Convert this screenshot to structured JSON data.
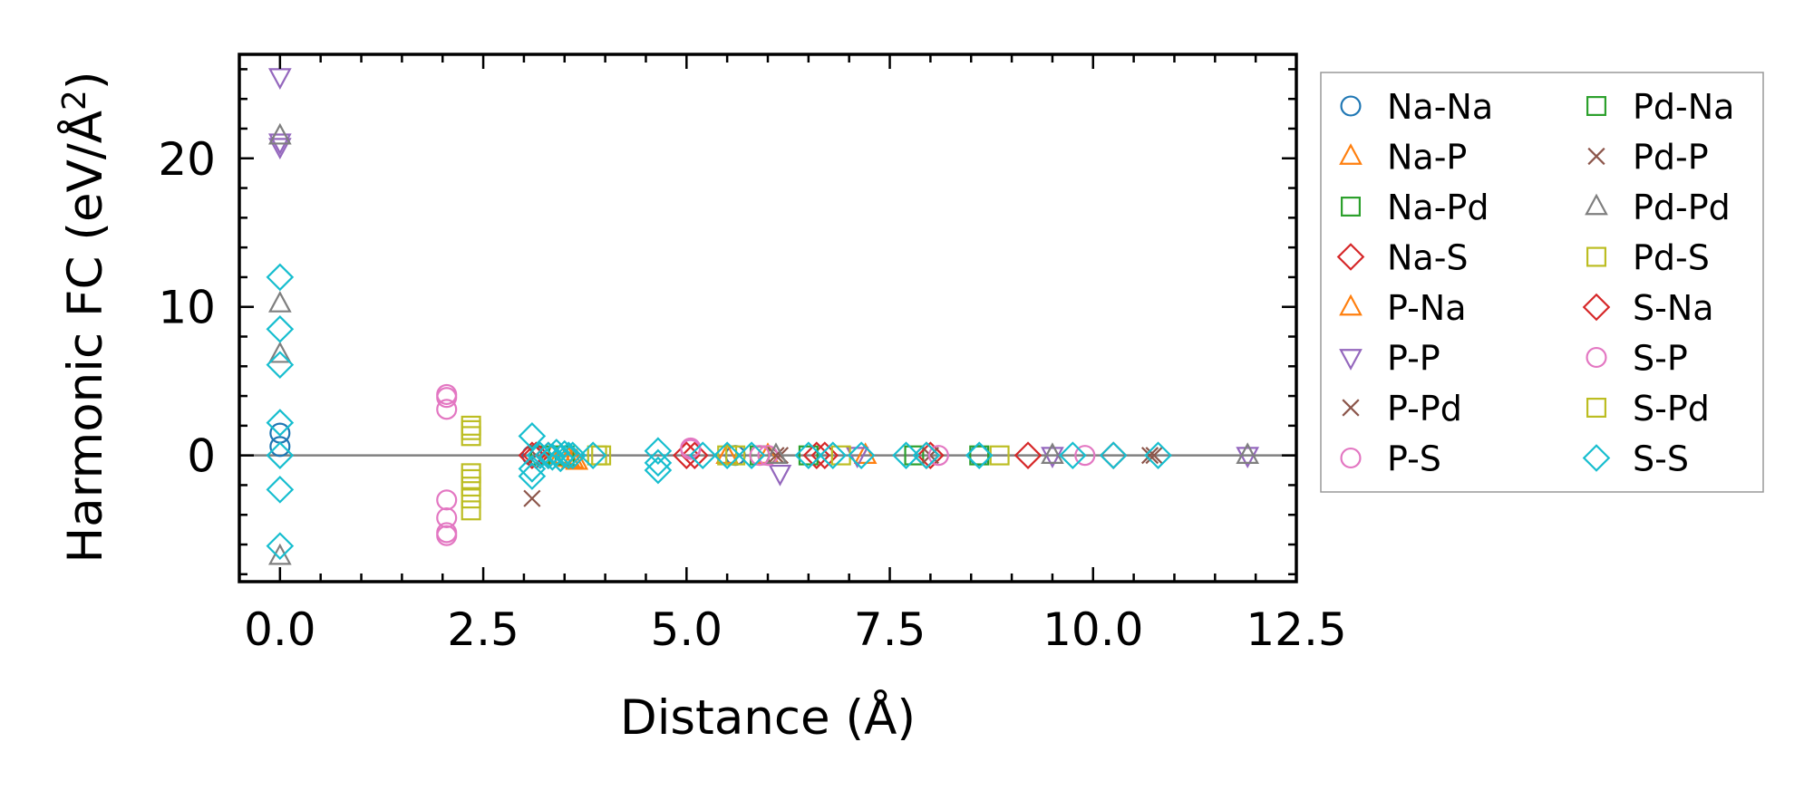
{
  "chart_data": {
    "type": "scatter",
    "xlabel": "Distance (Å)",
    "ylabel_main": "Harmonic FC (eV/Å",
    "ylabel_sup": "2",
    "ylabel_close": ")",
    "xlim": [
      -0.5,
      12.5
    ],
    "ylim": [
      -8.5,
      27
    ],
    "xticks": [
      0.0,
      2.5,
      5.0,
      7.5,
      10.0,
      12.5
    ],
    "xtick_labels": [
      "0.0",
      "2.5",
      "5.0",
      "7.5",
      "10.0",
      "12.5"
    ],
    "yticks": [
      0,
      10,
      20
    ],
    "ytick_labels": [
      "0",
      "10",
      "20"
    ],
    "hline_y": 0,
    "legend_position": "outside-right",
    "series": [
      {
        "name": "Na-Na",
        "marker": "circle",
        "color": "#1f77b4",
        "x": [
          0.0,
          0.0,
          3.1,
          5.6,
          8.6
        ],
        "y": [
          0.6,
          1.5,
          0.0,
          0.0,
          0.0
        ]
      },
      {
        "name": "Na-P",
        "marker": "triangle-up",
        "color": "#ff7f0e",
        "x": [
          3.35,
          3.55,
          3.65,
          5.5,
          7.2
        ],
        "y": [
          0.0,
          -0.2,
          -0.4,
          0.0,
          0.0
        ]
      },
      {
        "name": "Na-Pd",
        "marker": "square",
        "color": "#2ca02c",
        "x": [
          3.5,
          5.9,
          7.8
        ],
        "y": [
          0.0,
          0.0,
          0.0
        ]
      },
      {
        "name": "Na-S",
        "marker": "diamond",
        "color": "#d62728",
        "x": [
          3.1,
          3.3,
          5.1,
          6.7,
          8.0,
          9.2
        ],
        "y": [
          0.0,
          0.0,
          0.0,
          0.0,
          0.0,
          0.0
        ]
      },
      {
        "name": "P-Na",
        "marker": "triangle-up",
        "color": "#ff7f0e",
        "x": [
          3.45,
          3.6,
          6.0
        ],
        "y": [
          0.0,
          -0.3,
          0.0
        ]
      },
      {
        "name": "P-P",
        "marker": "triangle-down",
        "color": "#9467bd",
        "x": [
          0.0,
          0.0,
          0.0,
          6.15,
          7.1,
          9.5,
          11.9
        ],
        "y": [
          25.5,
          20.8,
          21.1,
          -1.2,
          0.0,
          0.0,
          0.0
        ]
      },
      {
        "name": "P-Pd",
        "marker": "x",
        "color": "#8c564b",
        "x": [
          3.1,
          6.15,
          8.0,
          10.75
        ],
        "y": [
          -2.9,
          0.0,
          0.0,
          0.0
        ]
      },
      {
        "name": "P-S",
        "marker": "circle",
        "color": "#e377c2",
        "x": [
          2.05,
          2.05,
          2.05,
          2.05,
          2.05,
          5.05,
          6.0,
          8.1
        ],
        "y": [
          4.1,
          3.1,
          -3.0,
          -5.2,
          -5.4,
          0.4,
          0.0,
          0.0
        ]
      },
      {
        "name": "Pd-Na",
        "marker": "square",
        "color": "#2ca02c",
        "x": [
          3.2,
          6.5,
          8.6
        ],
        "y": [
          0.0,
          0.0,
          0.0
        ]
      },
      {
        "name": "Pd-P",
        "marker": "x",
        "color": "#8c564b",
        "x": [
          3.15,
          6.1,
          10.7
        ],
        "y": [
          0.0,
          0.0,
          0.0
        ]
      },
      {
        "name": "Pd-Pd",
        "marker": "triangle-up",
        "color": "#7f7f7f",
        "x": [
          0.0,
          0.0,
          0.0,
          0.0,
          6.1,
          9.5,
          11.9
        ],
        "y": [
          21.5,
          10.2,
          6.8,
          -6.8,
          0.0,
          0.0,
          0.0
        ]
      },
      {
        "name": "Pd-S",
        "marker": "square",
        "color": "#bcbd22",
        "x": [
          2.35,
          2.35,
          2.35,
          2.35,
          2.35,
          2.35,
          3.9,
          5.6,
          6.9,
          8.85
        ],
        "y": [
          2.0,
          1.3,
          -1.2,
          -2.1,
          -2.9,
          -3.7,
          0.0,
          0.0,
          0.0,
          0.0
        ]
      },
      {
        "name": "S-Na",
        "marker": "diamond",
        "color": "#d62728",
        "x": [
          3.15,
          5.0,
          6.6,
          7.95,
          10.25
        ],
        "y": [
          0.0,
          0.0,
          0.0,
          0.0,
          0.0
        ]
      },
      {
        "name": "S-P",
        "marker": "circle",
        "color": "#e377c2",
        "x": [
          2.05,
          2.05,
          5.05,
          5.9,
          9.9
        ],
        "y": [
          3.9,
          -4.2,
          0.5,
          0.0,
          0.0
        ]
      },
      {
        "name": "S-Pd",
        "marker": "square",
        "color": "#bcbd22",
        "x": [
          2.35,
          2.35,
          3.95,
          5.5
        ],
        "y": [
          1.7,
          -1.6,
          0.0,
          0.0
        ]
      },
      {
        "name": "S-S",
        "marker": "diamond",
        "color": "#17becf",
        "x": [
          0.0,
          0.0,
          0.0,
          0.0,
          0.0,
          0.0,
          0.0,
          3.1,
          3.1,
          3.1,
          3.2,
          3.3,
          3.35,
          3.4,
          3.45,
          3.5,
          3.55,
          3.6,
          3.85,
          4.65,
          4.65,
          4.65,
          5.2,
          5.5,
          5.8,
          6.5,
          6.8,
          7.15,
          7.7,
          7.95,
          8.6,
          9.75,
          10.25,
          10.8
        ],
        "y": [
          12.0,
          8.5,
          6.1,
          2.2,
          -2.3,
          -6.1,
          0.0,
          1.3,
          -0.9,
          -1.4,
          0.0,
          0.0,
          -0.1,
          0.2,
          -0.2,
          0.1,
          0.0,
          0.0,
          0.0,
          0.3,
          -0.5,
          -1.0,
          0.0,
          0.0,
          0.0,
          0.0,
          0.0,
          0.0,
          0.0,
          0.0,
          0.0,
          0.0,
          0.0,
          0.0
        ]
      }
    ]
  }
}
